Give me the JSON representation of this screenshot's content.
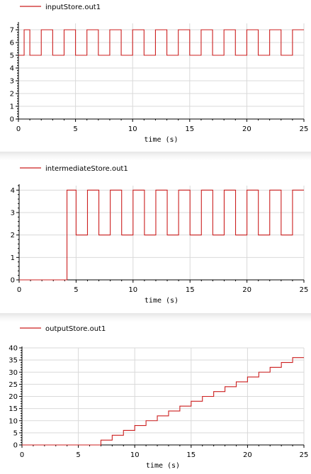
{
  "colors": {
    "series": "#cc1f1f",
    "grid": "#d9d9d9",
    "axis": "#000000",
    "background": "#ffffff"
  },
  "chart_data": [
    {
      "type": "line",
      "step": true,
      "legend": "inputStore.out1",
      "legend_position": "top-left",
      "xlabel": "time (s)",
      "ylabel": "",
      "xlim": [
        0,
        25
      ],
      "ylim": [
        0,
        7.5
      ],
      "grid": true,
      "xticks": [
        "0",
        "5",
        "10",
        "15",
        "20",
        "25"
      ],
      "yticks": [
        "0",
        "1",
        "2",
        "3",
        "4",
        "5",
        "6",
        "7"
      ],
      "series": [
        {
          "name": "inputStore.out1",
          "x": [
            0,
            0.5,
            0.5,
            1,
            1,
            2,
            2,
            3,
            3,
            4,
            4,
            5,
            5,
            6,
            6,
            7,
            7,
            8,
            8,
            9,
            9,
            10,
            10,
            11,
            11,
            12,
            12,
            13,
            13,
            14,
            14,
            15,
            15,
            16,
            16,
            17,
            17,
            18,
            18,
            19,
            19,
            20,
            20,
            21,
            21,
            22,
            22,
            23,
            23,
            24,
            24,
            25
          ],
          "y": [
            5,
            5,
            7,
            7,
            5,
            5,
            7,
            7,
            5,
            5,
            7,
            7,
            5,
            5,
            7,
            7,
            5,
            5,
            7,
            7,
            5,
            5,
            7,
            7,
            5,
            5,
            7,
            7,
            5,
            5,
            7,
            7,
            5,
            5,
            7,
            7,
            5,
            5,
            7,
            7,
            5,
            5,
            7,
            7,
            5,
            5,
            7,
            7,
            5,
            5,
            7,
            7
          ]
        }
      ]
    },
    {
      "type": "line",
      "step": true,
      "legend": "intermediateStore.out1",
      "legend_position": "top-left",
      "xlabel": "time (s)",
      "ylabel": "",
      "xlim": [
        0,
        25
      ],
      "ylim": [
        0,
        4.2
      ],
      "grid": true,
      "xticks": [
        "0",
        "5",
        "10",
        "15",
        "20",
        "25"
      ],
      "yticks": [
        "0",
        "1",
        "2",
        "3",
        "4"
      ],
      "series": [
        {
          "name": "intermediateStore.out1",
          "x": [
            0,
            4.2,
            4.2,
            5,
            5,
            6,
            6,
            7,
            7,
            8,
            8,
            9,
            9,
            10,
            10,
            11,
            11,
            12,
            12,
            13,
            13,
            14,
            14,
            15,
            15,
            16,
            16,
            17,
            17,
            18,
            18,
            19,
            19,
            20,
            20,
            21,
            21,
            22,
            22,
            23,
            23,
            24,
            24,
            25
          ],
          "y": [
            0,
            0,
            4,
            4,
            2,
            2,
            4,
            4,
            2,
            2,
            4,
            4,
            2,
            2,
            4,
            4,
            2,
            2,
            4,
            4,
            2,
            2,
            4,
            4,
            2,
            2,
            4,
            4,
            2,
            2,
            4,
            4,
            2,
            2,
            4,
            4,
            2,
            2,
            4,
            4,
            2,
            2,
            4,
            4
          ]
        }
      ]
    },
    {
      "type": "line",
      "step": true,
      "legend": "outputStore.out1",
      "legend_position": "top-left",
      "xlabel": "time (s)",
      "ylabel": "",
      "xlim": [
        0,
        25
      ],
      "ylim": [
        0,
        40
      ],
      "grid": true,
      "xticks": [
        "0",
        "5",
        "10",
        "15",
        "20",
        "25"
      ],
      "yticks": [
        "0",
        "5",
        "10",
        "15",
        "20",
        "25",
        "30",
        "35",
        "40"
      ],
      "series": [
        {
          "name": "outputStore.out1",
          "x": [
            0,
            7,
            7,
            8,
            8,
            9,
            9,
            10,
            10,
            11,
            11,
            12,
            12,
            13,
            13,
            14,
            14,
            15,
            15,
            16,
            16,
            17,
            17,
            18,
            18,
            19,
            19,
            20,
            20,
            21,
            21,
            22,
            22,
            23,
            23,
            24,
            24,
            25
          ],
          "y": [
            0,
            0,
            2,
            2,
            4,
            4,
            6,
            6,
            8,
            8,
            10,
            10,
            12,
            12,
            14,
            14,
            16,
            16,
            18,
            18,
            20,
            20,
            22,
            22,
            24,
            24,
            26,
            26,
            28,
            28,
            30,
            30,
            32,
            32,
            34,
            34,
            36,
            36
          ]
        }
      ]
    }
  ]
}
